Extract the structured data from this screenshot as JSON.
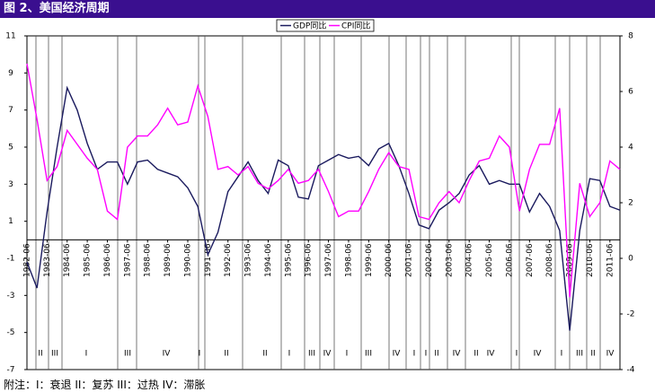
{
  "chart_data": {
    "type": "line",
    "title": "图 2、美国经济周期",
    "footnote": "附注：I：衰退   II：复苏   III：过热   IV：滞胀",
    "categories": [
      "1982-06",
      null,
      "1983-06",
      null,
      "1984-06",
      null,
      "1985-06",
      null,
      "1986-06",
      null,
      "1987-06",
      null,
      "1988-06",
      null,
      "1989-06",
      null,
      "1990-06",
      null,
      "1991-06",
      null,
      "1992-06",
      null,
      "1993-06",
      null,
      "1994-06",
      null,
      "1995-06",
      null,
      "1996-06",
      null,
      "1997-06",
      null,
      "1998-06",
      null,
      "1999-06",
      null,
      "2000-06",
      null,
      "2001-06",
      null,
      "2002-06",
      null,
      "2003-06",
      null,
      "2004-06",
      null,
      "2005-06",
      null,
      "2006-06",
      null,
      "2007-06",
      null,
      "2008-06",
      null,
      "2009-06",
      null,
      "2010-06",
      null,
      "2011-06",
      null
    ],
    "series": [
      {
        "name": "GDP同比",
        "color": "#1a1a5e",
        "values": [
          -1.2,
          -2.6,
          1.5,
          5.0,
          8.2,
          7.0,
          5.2,
          3.8,
          4.2,
          4.2,
          3.0,
          4.2,
          4.3,
          3.8,
          3.6,
          3.4,
          2.8,
          1.8,
          -0.8,
          0.4,
          2.6,
          3.4,
          4.2,
          3.2,
          2.5,
          4.3,
          4.0,
          2.3,
          2.2,
          4.0,
          4.3,
          4.6,
          4.4,
          4.5,
          4.0,
          4.9,
          5.2,
          4.0,
          2.5,
          0.8,
          0.6,
          1.6,
          2.0,
          2.5,
          3.5,
          4.0,
          3.0,
          3.2,
          3.0,
          3.0,
          1.5,
          2.5,
          1.8,
          0.5,
          -4.9,
          0.5,
          3.3,
          3.2,
          1.8,
          1.6
        ]
      },
      {
        "name": "CPI同比",
        "color": "#ff00ff",
        "axis": "y2",
        "values": [
          7.0,
          5.0,
          2.8,
          3.3,
          4.6,
          4.1,
          3.6,
          3.2,
          1.7,
          1.4,
          4.0,
          4.4,
          4.4,
          4.8,
          5.4,
          4.8,
          4.9,
          6.2,
          5.1,
          3.2,
          3.3,
          3.0,
          3.3,
          2.7,
          2.5,
          2.8,
          3.2,
          2.7,
          2.8,
          3.2,
          2.4,
          1.5,
          1.7,
          1.7,
          2.4,
          3.2,
          3.8,
          3.3,
          3.2,
          1.5,
          1.4,
          2.0,
          2.4,
          2.0,
          2.8,
          3.5,
          3.6,
          4.4,
          4.0,
          1.7,
          3.2,
          4.1,
          4.1,
          5.4,
          -1.4,
          2.7,
          1.5,
          2.0,
          3.5,
          3.2
        ]
      }
    ],
    "ylim": [
      -7,
      11
    ],
    "yticks": [
      -7,
      -5,
      -3,
      -1,
      1,
      3,
      5,
      7,
      9,
      11
    ],
    "y2lim": [
      -4,
      8
    ],
    "y2ticks": [
      -4,
      -2,
      0,
      2,
      4,
      6,
      8
    ],
    "phases": [
      "II",
      "III",
      "I",
      "III",
      "IV",
      "I",
      "II",
      "II",
      "I",
      "III",
      "IV",
      "I",
      "III",
      "IV",
      "I",
      "I",
      "II",
      "IV",
      "II",
      "IV",
      "I",
      "IV",
      "I",
      "III",
      "II",
      "IV"
    ]
  }
}
